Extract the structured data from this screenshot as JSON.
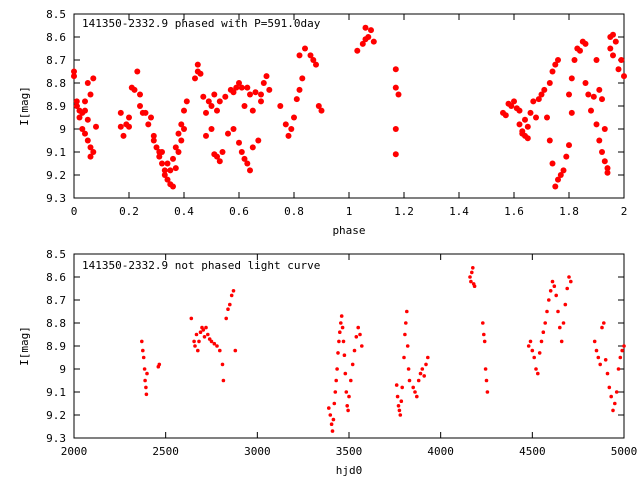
{
  "chart_data": [
    {
      "type": "scatter",
      "title": "141350-2332.9 phased with P=591.0day",
      "xlabel": "phase",
      "ylabel": "I[mag]",
      "xlim": [
        0,
        2
      ],
      "ylim": [
        9.3,
        8.5
      ],
      "y_inverted": true,
      "grid": false,
      "color": "#ff0000",
      "xticks": [
        "0",
        "0.2",
        "0.4",
        "0.6",
        "0.8",
        "1",
        "1.2",
        "1.4",
        "1.6",
        "1.8",
        "2"
      ],
      "xtick_values": [
        0,
        0.2,
        0.4,
        0.6,
        0.8,
        1,
        1.2,
        1.4,
        1.6,
        1.8,
        2
      ],
      "yticks": [
        "8.5",
        "8.6",
        "8.7",
        "8.8",
        "8.9",
        "9",
        "9.1",
        "9.2",
        "9.3"
      ],
      "ytick_values": [
        8.5,
        8.6,
        8.7,
        8.8,
        8.9,
        9.0,
        9.1,
        9.2,
        9.3
      ],
      "points": [
        [
          0.0,
          8.75
        ],
        [
          0.0,
          8.77
        ],
        [
          0.01,
          8.88
        ],
        [
          0.01,
          8.9
        ],
        [
          0.02,
          8.92
        ],
        [
          0.02,
          8.95
        ],
        [
          0.03,
          8.93
        ],
        [
          0.03,
          9.0
        ],
        [
          0.04,
          8.92
        ],
        [
          0.04,
          8.88
        ],
        [
          0.04,
          9.02
        ],
        [
          0.05,
          8.96
        ],
        [
          0.05,
          9.05
        ],
        [
          0.05,
          8.8
        ],
        [
          0.06,
          9.08
        ],
        [
          0.06,
          9.12
        ],
        [
          0.06,
          8.85
        ],
        [
          0.07,
          9.1
        ],
        [
          0.07,
          8.78
        ],
        [
          0.08,
          8.99
        ],
        [
          0.17,
          8.93
        ],
        [
          0.17,
          8.99
        ],
        [
          0.18,
          9.03
        ],
        [
          0.19,
          8.98
        ],
        [
          0.2,
          8.95
        ],
        [
          0.2,
          8.99
        ],
        [
          0.21,
          8.82
        ],
        [
          0.22,
          8.83
        ],
        [
          0.23,
          8.75
        ],
        [
          0.24,
          8.85
        ],
        [
          0.24,
          8.9
        ],
        [
          0.25,
          8.93
        ],
        [
          0.26,
          8.93
        ],
        [
          0.27,
          8.98
        ],
        [
          0.28,
          8.95
        ],
        [
          0.29,
          9.03
        ],
        [
          0.29,
          9.05
        ],
        [
          0.3,
          9.08
        ],
        [
          0.31,
          9.1
        ],
        [
          0.31,
          9.12
        ],
        [
          0.32,
          9.1
        ],
        [
          0.32,
          9.15
        ],
        [
          0.33,
          9.18
        ],
        [
          0.33,
          9.2
        ],
        [
          0.34,
          9.22
        ],
        [
          0.34,
          9.15
        ],
        [
          0.35,
          9.24
        ],
        [
          0.35,
          9.18
        ],
        [
          0.36,
          9.13
        ],
        [
          0.36,
          9.25
        ],
        [
          0.37,
          9.17
        ],
        [
          0.37,
          9.08
        ],
        [
          0.38,
          9.1
        ],
        [
          0.38,
          9.02
        ],
        [
          0.39,
          9.05
        ],
        [
          0.39,
          8.98
        ],
        [
          0.4,
          9.0
        ],
        [
          0.4,
          8.92
        ],
        [
          0.41,
          8.88
        ],
        [
          0.44,
          8.78
        ],
        [
          0.45,
          8.72
        ],
        [
          0.45,
          8.75
        ],
        [
          0.46,
          8.76
        ],
        [
          0.47,
          8.86
        ],
        [
          0.48,
          8.93
        ],
        [
          0.48,
          9.03
        ],
        [
          0.49,
          8.88
        ],
        [
          0.5,
          8.9
        ],
        [
          0.5,
          9.0
        ],
        [
          0.51,
          9.11
        ],
        [
          0.51,
          8.85
        ],
        [
          0.52,
          9.12
        ],
        [
          0.52,
          8.92
        ],
        [
          0.53,
          9.14
        ],
        [
          0.53,
          8.88
        ],
        [
          0.54,
          9.1
        ],
        [
          0.55,
          8.86
        ],
        [
          0.56,
          9.02
        ],
        [
          0.57,
          8.83
        ],
        [
          0.58,
          8.84
        ],
        [
          0.58,
          9.0
        ],
        [
          0.59,
          8.82
        ],
        [
          0.6,
          8.8
        ],
        [
          0.6,
          9.06
        ],
        [
          0.61,
          8.82
        ],
        [
          0.61,
          9.1
        ],
        [
          0.62,
          9.13
        ],
        [
          0.62,
          8.9
        ],
        [
          0.63,
          9.15
        ],
        [
          0.63,
          8.82
        ],
        [
          0.64,
          9.18
        ],
        [
          0.64,
          8.85
        ],
        [
          0.65,
          8.92
        ],
        [
          0.65,
          9.08
        ],
        [
          0.66,
          8.84
        ],
        [
          0.67,
          9.05
        ],
        [
          0.68,
          8.85
        ],
        [
          0.68,
          8.88
        ],
        [
          0.69,
          8.8
        ],
        [
          0.7,
          8.77
        ],
        [
          0.71,
          8.83
        ],
        [
          0.75,
          8.9
        ],
        [
          0.77,
          8.98
        ],
        [
          0.78,
          9.03
        ],
        [
          0.79,
          9.0
        ],
        [
          0.8,
          8.95
        ],
        [
          0.81,
          8.87
        ],
        [
          0.82,
          8.83
        ],
        [
          0.83,
          8.78
        ],
        [
          0.82,
          8.68
        ],
        [
          0.84,
          8.65
        ],
        [
          0.86,
          8.68
        ],
        [
          0.87,
          8.7
        ],
        [
          0.88,
          8.72
        ],
        [
          0.89,
          8.9
        ],
        [
          0.9,
          8.92
        ],
        [
          1.03,
          8.66
        ],
        [
          1.05,
          8.63
        ],
        [
          1.06,
          8.56
        ],
        [
          1.06,
          8.61
        ],
        [
          1.07,
          8.6
        ],
        [
          1.08,
          8.57
        ],
        [
          1.09,
          8.62
        ],
        [
          1.17,
          8.74
        ],
        [
          1.17,
          8.82
        ],
        [
          1.18,
          8.85
        ],
        [
          1.17,
          9.0
        ],
        [
          1.17,
          9.11
        ],
        [
          1.56,
          8.93
        ],
        [
          1.57,
          8.94
        ],
        [
          1.58,
          8.89
        ],
        [
          1.59,
          8.9
        ],
        [
          1.6,
          8.88
        ],
        [
          1.61,
          8.91
        ],
        [
          1.62,
          8.92
        ],
        [
          1.62,
          8.98
        ],
        [
          1.63,
          9.01
        ],
        [
          1.63,
          9.02
        ],
        [
          1.64,
          9.03
        ],
        [
          1.64,
          8.96
        ],
        [
          1.65,
          9.04
        ],
        [
          1.65,
          8.99
        ],
        [
          1.66,
          8.93
        ],
        [
          1.67,
          8.88
        ],
        [
          1.68,
          8.95
        ],
        [
          1.69,
          8.87
        ],
        [
          1.7,
          8.85
        ],
        [
          1.71,
          8.83
        ],
        [
          1.72,
          8.95
        ],
        [
          1.73,
          9.05
        ],
        [
          1.73,
          8.8
        ],
        [
          1.74,
          9.15
        ],
        [
          1.74,
          8.75
        ],
        [
          1.75,
          9.25
        ],
        [
          1.75,
          8.72
        ],
        [
          1.76,
          9.22
        ],
        [
          1.76,
          8.7
        ],
        [
          1.77,
          9.2
        ],
        [
          1.78,
          9.18
        ],
        [
          1.79,
          9.12
        ],
        [
          1.8,
          9.07
        ],
        [
          1.8,
          8.85
        ],
        [
          1.81,
          8.93
        ],
        [
          1.81,
          8.78
        ],
        [
          1.82,
          8.7
        ],
        [
          1.83,
          8.65
        ],
        [
          1.84,
          8.66
        ],
        [
          1.85,
          8.62
        ],
        [
          1.86,
          8.8
        ],
        [
          1.86,
          8.63
        ],
        [
          1.87,
          8.85
        ],
        [
          1.88,
          8.92
        ],
        [
          1.89,
          8.86
        ],
        [
          1.9,
          8.7
        ],
        [
          1.9,
          8.98
        ],
        [
          1.91,
          8.83
        ],
        [
          1.91,
          9.05
        ],
        [
          1.92,
          8.87
        ],
        [
          1.92,
          9.1
        ],
        [
          1.93,
          9.0
        ],
        [
          1.93,
          9.14
        ],
        [
          1.94,
          9.17
        ],
        [
          1.94,
          9.19
        ],
        [
          1.95,
          8.65
        ],
        [
          1.95,
          8.6
        ],
        [
          1.96,
          8.59
        ],
        [
          1.96,
          8.68
        ],
        [
          1.97,
          8.62
        ],
        [
          1.98,
          8.74
        ],
        [
          1.99,
          8.7
        ],
        [
          2.0,
          8.77
        ]
      ]
    },
    {
      "type": "scatter",
      "title": "141350-2332.9 not phased light curve",
      "xlabel": "hjd0",
      "ylabel": "I[mag]",
      "xlim": [
        2000,
        5000
      ],
      "ylim": [
        9.3,
        8.5
      ],
      "y_inverted": true,
      "grid": false,
      "color": "#ff0000",
      "xticks": [
        "2000",
        "2500",
        "3000",
        "3500",
        "4000",
        "4500",
        "5000"
      ],
      "xtick_values": [
        2000,
        2500,
        3000,
        3500,
        4000,
        4500,
        5000
      ],
      "yticks": [
        "8.5",
        "8.6",
        "8.7",
        "8.8",
        "8.9",
        "9",
        "9.1",
        "9.2",
        "9.3"
      ],
      "ytick_values": [
        8.5,
        8.6,
        8.7,
        8.8,
        8.9,
        9.0,
        9.1,
        9.2,
        9.3
      ],
      "points": [
        [
          2370,
          8.88
        ],
        [
          2375,
          8.92
        ],
        [
          2380,
          8.95
        ],
        [
          2385,
          9.0
        ],
        [
          2388,
          9.05
        ],
        [
          2392,
          9.08
        ],
        [
          2395,
          9.11
        ],
        [
          2398,
          9.02
        ],
        [
          2460,
          8.99
        ],
        [
          2465,
          8.98
        ],
        [
          2640,
          8.78
        ],
        [
          2655,
          8.88
        ],
        [
          2660,
          8.9
        ],
        [
          2668,
          8.85
        ],
        [
          2675,
          8.92
        ],
        [
          2682,
          8.88
        ],
        [
          2690,
          8.84
        ],
        [
          2698,
          8.82
        ],
        [
          2705,
          8.83
        ],
        [
          2712,
          8.86
        ],
        [
          2720,
          8.82
        ],
        [
          2730,
          8.85
        ],
        [
          2740,
          8.87
        ],
        [
          2750,
          8.88
        ],
        [
          2765,
          8.89
        ],
        [
          2780,
          8.9
        ],
        [
          2795,
          8.92
        ],
        [
          2810,
          8.98
        ],
        [
          2815,
          9.05
        ],
        [
          2830,
          8.78
        ],
        [
          2840,
          8.74
        ],
        [
          2850,
          8.72
        ],
        [
          2860,
          8.68
        ],
        [
          2870,
          8.66
        ],
        [
          2880,
          8.92
        ],
        [
          3390,
          9.17
        ],
        [
          3398,
          9.2
        ],
        [
          3405,
          9.24
        ],
        [
          3410,
          9.27
        ],
        [
          3415,
          9.22
        ],
        [
          3420,
          9.15
        ],
        [
          3425,
          9.1
        ],
        [
          3430,
          9.05
        ],
        [
          3435,
          9.0
        ],
        [
          3440,
          8.93
        ],
        [
          3445,
          8.88
        ],
        [
          3450,
          8.84
        ],
        [
          3455,
          8.8
        ],
        [
          3460,
          8.77
        ],
        [
          3465,
          8.82
        ],
        [
          3470,
          8.88
        ],
        [
          3475,
          8.94
        ],
        [
          3480,
          9.02
        ],
        [
          3485,
          9.1
        ],
        [
          3490,
          9.16
        ],
        [
          3495,
          9.18
        ],
        [
          3500,
          9.12
        ],
        [
          3510,
          9.05
        ],
        [
          3520,
          8.98
        ],
        [
          3530,
          8.92
        ],
        [
          3540,
          8.86
        ],
        [
          3550,
          8.82
        ],
        [
          3560,
          8.85
        ],
        [
          3570,
          8.9
        ],
        [
          3760,
          9.07
        ],
        [
          3765,
          9.12
        ],
        [
          3770,
          9.16
        ],
        [
          3775,
          9.18
        ],
        [
          3780,
          9.2
        ],
        [
          3785,
          9.14
        ],
        [
          3790,
          9.08
        ],
        [
          3800,
          8.95
        ],
        [
          3805,
          8.85
        ],
        [
          3810,
          8.8
        ],
        [
          3815,
          8.75
        ],
        [
          3820,
          8.9
        ],
        [
          3825,
          9.0
        ],
        [
          3830,
          9.05
        ],
        [
          3850,
          9.08
        ],
        [
          3860,
          9.1
        ],
        [
          3870,
          9.12
        ],
        [
          3880,
          9.05
        ],
        [
          3890,
          9.02
        ],
        [
          3900,
          9.0
        ],
        [
          3910,
          9.03
        ],
        [
          3920,
          8.98
        ],
        [
          3930,
          8.95
        ],
        [
          4160,
          8.6
        ],
        [
          4165,
          8.62
        ],
        [
          4170,
          8.58
        ],
        [
          4175,
          8.56
        ],
        [
          4180,
          8.63
        ],
        [
          4185,
          8.64
        ],
        [
          4230,
          8.8
        ],
        [
          4235,
          8.85
        ],
        [
          4240,
          8.88
        ],
        [
          4245,
          9.0
        ],
        [
          4250,
          9.05
        ],
        [
          4255,
          9.1
        ],
        [
          4480,
          8.9
        ],
        [
          4490,
          8.88
        ],
        [
          4500,
          8.92
        ],
        [
          4510,
          8.95
        ],
        [
          4520,
          9.0
        ],
        [
          4530,
          9.02
        ],
        [
          4540,
          8.93
        ],
        [
          4550,
          8.88
        ],
        [
          4560,
          8.84
        ],
        [
          4570,
          8.8
        ],
        [
          4580,
          8.75
        ],
        [
          4590,
          8.7
        ],
        [
          4600,
          8.66
        ],
        [
          4610,
          8.62
        ],
        [
          4620,
          8.64
        ],
        [
          4630,
          8.68
        ],
        [
          4640,
          8.75
        ],
        [
          4650,
          8.82
        ],
        [
          4660,
          8.88
        ],
        [
          4670,
          8.8
        ],
        [
          4680,
          8.72
        ],
        [
          4690,
          8.65
        ],
        [
          4700,
          8.6
        ],
        [
          4710,
          8.62
        ],
        [
          4840,
          8.88
        ],
        [
          4850,
          8.92
        ],
        [
          4860,
          8.95
        ],
        [
          4870,
          8.98
        ],
        [
          4880,
          8.82
        ],
        [
          4890,
          8.8
        ],
        [
          4900,
          8.96
        ],
        [
          4910,
          9.02
        ],
        [
          4920,
          9.08
        ],
        [
          4930,
          9.12
        ],
        [
          4940,
          9.18
        ],
        [
          4950,
          9.15
        ],
        [
          4960,
          9.1
        ],
        [
          4970,
          9.0
        ],
        [
          4980,
          8.95
        ],
        [
          4990,
          8.92
        ],
        [
          5000,
          8.9
        ]
      ]
    }
  ]
}
